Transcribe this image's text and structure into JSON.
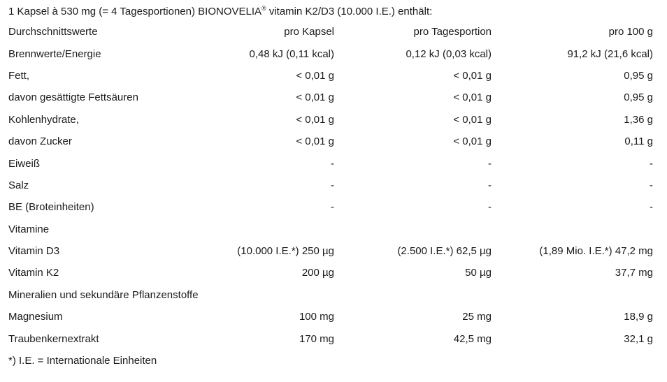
{
  "title": {
    "pre": "1 Kapsel à 530 mg (= 4 Tagesportionen) BIONOVELIA",
    "registered_mark": "®",
    "post": " vitamin K2/D3 (10.000 I.E.) enthält:"
  },
  "table": {
    "columns": [
      "Durchschnittswerte",
      "pro Kapsel",
      "pro Tagesportion",
      "pro 100 g"
    ],
    "rows": [
      {
        "label": "Brennwerte/Energie",
        "per_capsule": "0,48 kJ (0,11 kcal)",
        "per_serving": "0,12 kJ (0,03 kcal)",
        "per_100g": "91,2 kJ (21,6 kcal)"
      },
      {
        "label": "Fett,",
        "per_capsule": "< 0,01 g",
        "per_serving": "< 0,01 g",
        "per_100g": "0,95 g"
      },
      {
        "label": "davon gesättigte Fettsäuren",
        "per_capsule": "< 0,01 g",
        "per_serving": "< 0,01 g",
        "per_100g": "0,95 g"
      },
      {
        "label": "Kohlenhydrate,",
        "per_capsule": "< 0,01 g",
        "per_serving": "< 0,01 g",
        "per_100g": "1,36 g"
      },
      {
        "label": "davon Zucker",
        "per_capsule": "< 0,01 g",
        "per_serving": "< 0,01 g",
        "per_100g": "0,11 g"
      },
      {
        "label": "Eiweiß",
        "per_capsule": "-",
        "per_serving": "-",
        "per_100g": "-"
      },
      {
        "label": "Salz",
        "per_capsule": "-",
        "per_serving": "-",
        "per_100g": "-"
      },
      {
        "label": "BE (Broteinheiten)",
        "per_capsule": "-",
        "per_serving": "-",
        "per_100g": "-"
      },
      {
        "label": "Vitamine",
        "per_capsule": "",
        "per_serving": "",
        "per_100g": ""
      },
      {
        "label": "Vitamin D3",
        "per_capsule": "(10.000 I.E.*) 250 µg",
        "per_serving": "(2.500 I.E.*) 62,5 µg",
        "per_100g": "(1,89 Mio. I.E.*) 47,2 mg"
      },
      {
        "label": "Vitamin K2",
        "per_capsule": "200 µg",
        "per_serving": "50 µg",
        "per_100g": "37,7 mg"
      },
      {
        "label": "Mineralien und sekundäre Pflanzenstoffe",
        "per_capsule": "",
        "per_serving": "",
        "per_100g": ""
      },
      {
        "label": "Magnesium",
        "per_capsule": "100 mg",
        "per_serving": "25 mg",
        "per_100g": "18,9 g"
      },
      {
        "label": "Traubenkernextrakt",
        "per_capsule": "170 mg",
        "per_serving": "42,5 mg",
        "per_100g": "32,1 g"
      }
    ]
  },
  "footnote": "*) I.E. = Internationale Einheiten",
  "colors": {
    "text": "#1a1a1a",
    "background": "#ffffff"
  }
}
